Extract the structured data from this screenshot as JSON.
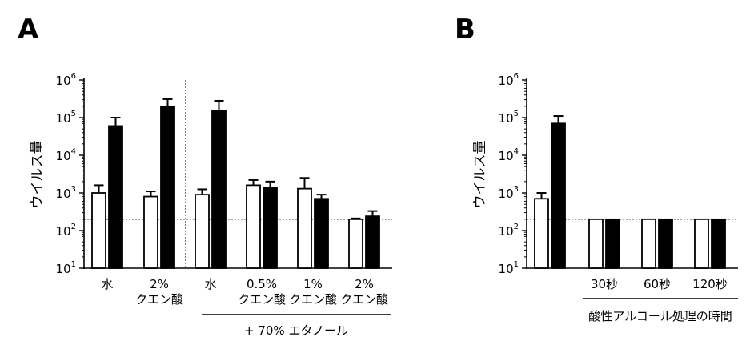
{
  "chart_data": [
    {
      "panel": "A",
      "type": "bar",
      "ylabel": "ウイルス量",
      "yscale": "log",
      "ylim": [
        10,
        1000000
      ],
      "yticks": [
        1,
        2,
        3,
        4,
        5,
        6
      ],
      "detection_limit": 200,
      "group_label": "+ 70% エタノール",
      "groups": [
        {
          "label_lines": [
            "水"
          ],
          "white": {
            "value": 1000,
            "err": 1600
          },
          "black": {
            "value": 60000,
            "err": 100000
          }
        },
        {
          "label_lines": [
            "2%",
            "クエン酸"
          ],
          "white": {
            "value": 800,
            "err": 1100
          },
          "black": {
            "value": 200000,
            "err": 310000
          }
        },
        {
          "label_lines": [
            "水"
          ],
          "white": {
            "value": 900,
            "err": 1250
          },
          "black": {
            "value": 150000,
            "err": 280000
          }
        },
        {
          "label_lines": [
            "0.5%",
            "クエン酸"
          ],
          "white": {
            "value": 1600,
            "err": 2200
          },
          "black": {
            "value": 1400,
            "err": 2000
          }
        },
        {
          "label_lines": [
            "1%",
            "クエン酸"
          ],
          "white": {
            "value": 1300,
            "err": 2500
          },
          "black": {
            "value": 700,
            "err": 900
          }
        },
        {
          "label_lines": [
            "2%",
            "クエン酸"
          ],
          "white": {
            "value": 200,
            "err": 210
          },
          "black": {
            "value": 240,
            "err": 330
          }
        }
      ]
    },
    {
      "panel": "B",
      "type": "bar",
      "ylabel": "ウイルス量",
      "yscale": "log",
      "ylim": [
        10,
        1000000
      ],
      "yticks": [
        1,
        2,
        3,
        4,
        5,
        6
      ],
      "detection_limit": 200,
      "group_label": "酸性アルコール処理の時間",
      "groups": [
        {
          "label_lines": [
            ""
          ],
          "white": {
            "value": 700,
            "err": 1000
          },
          "black": {
            "value": 70000,
            "err": 110000
          }
        },
        {
          "label_lines": [
            "30秒"
          ],
          "white": {
            "value": 200,
            "err": 200
          },
          "black": {
            "value": 200,
            "err": 200
          }
        },
        {
          "label_lines": [
            "60秒"
          ],
          "white": {
            "value": 200,
            "err": 200
          },
          "black": {
            "value": 200,
            "err": 200
          }
        },
        {
          "label_lines": [
            "120秒"
          ],
          "white": {
            "value": 200,
            "err": 200
          },
          "black": {
            "value": 200,
            "err": 200
          }
        }
      ]
    }
  ]
}
